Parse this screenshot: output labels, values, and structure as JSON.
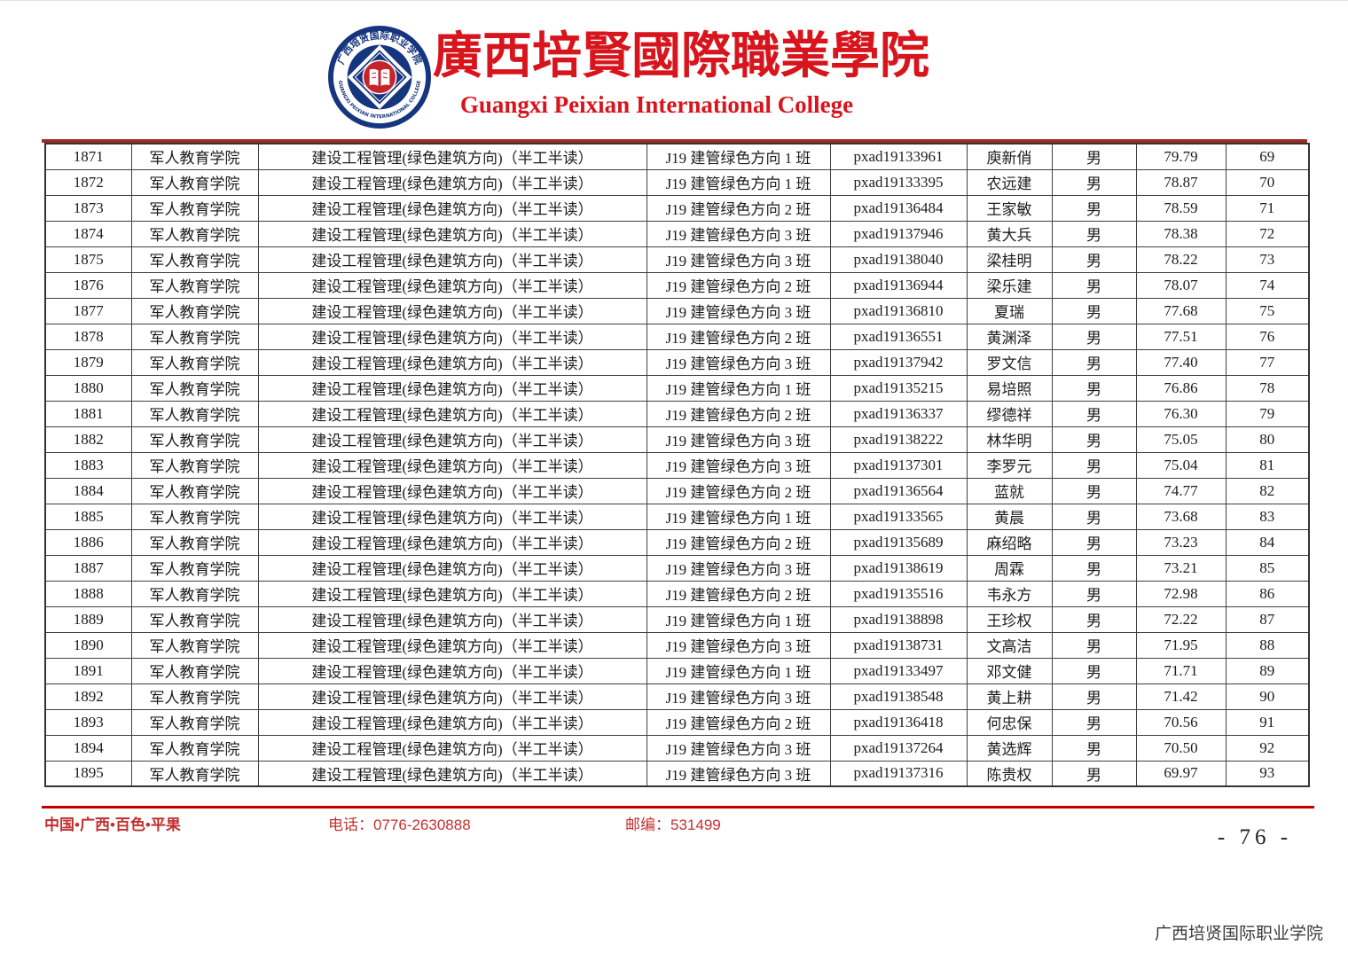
{
  "header": {
    "college_name_zh": "廣西培賢國際職業學院",
    "college_name_en": "Guangxi Peixian International College",
    "logo": {
      "ring_text_top": "广西培贤国际职业学院",
      "ring_text_bottom": "GUANGXI PEIXIAN INTERNATIONAL COLLEGE"
    }
  },
  "colors": {
    "brand_red": "#d8141c",
    "table_top_rule": "#9e2b25",
    "footer_rule": "#c00000",
    "footer_text": "#c22f2f",
    "logo_blue": "#16357f",
    "logo_red": "#c5242b"
  },
  "table": {
    "college": "军人教育学院",
    "major": "建设工程管理(绿色建筑方向)（半工半读）",
    "rows": [
      {
        "no": "1871",
        "class": "J19 建管绿色方向 1 班",
        "id": "pxad19133961",
        "name": "庾新俏",
        "gender": "男",
        "score": "79.79",
        "rank": "69"
      },
      {
        "no": "1872",
        "class": "J19 建管绿色方向 1 班",
        "id": "pxad19133395",
        "name": "农远建",
        "gender": "男",
        "score": "78.87",
        "rank": "70"
      },
      {
        "no": "1873",
        "class": "J19 建管绿色方向 2 班",
        "id": "pxad19136484",
        "name": "王家敏",
        "gender": "男",
        "score": "78.59",
        "rank": "71"
      },
      {
        "no": "1874",
        "class": "J19 建管绿色方向 3 班",
        "id": "pxad19137946",
        "name": "黄大兵",
        "gender": "男",
        "score": "78.38",
        "rank": "72"
      },
      {
        "no": "1875",
        "class": "J19 建管绿色方向 3 班",
        "id": "pxad19138040",
        "name": "梁桂明",
        "gender": "男",
        "score": "78.22",
        "rank": "73"
      },
      {
        "no": "1876",
        "class": "J19 建管绿色方向 2 班",
        "id": "pxad19136944",
        "name": "梁乐建",
        "gender": "男",
        "score": "78.07",
        "rank": "74"
      },
      {
        "no": "1877",
        "class": "J19 建管绿色方向 3 班",
        "id": "pxad19136810",
        "name": "夏瑞",
        "gender": "男",
        "score": "77.68",
        "rank": "75"
      },
      {
        "no": "1878",
        "class": "J19 建管绿色方向 2 班",
        "id": "pxad19136551",
        "name": "黄渊泽",
        "gender": "男",
        "score": "77.51",
        "rank": "76"
      },
      {
        "no": "1879",
        "class": "J19 建管绿色方向 3 班",
        "id": "pxad19137942",
        "name": "罗文信",
        "gender": "男",
        "score": "77.40",
        "rank": "77"
      },
      {
        "no": "1880",
        "class": "J19 建管绿色方向 1 班",
        "id": "pxad19135215",
        "name": "易培照",
        "gender": "男",
        "score": "76.86",
        "rank": "78"
      },
      {
        "no": "1881",
        "class": "J19 建管绿色方向 2 班",
        "id": "pxad19136337",
        "name": "缪德祥",
        "gender": "男",
        "score": "76.30",
        "rank": "79"
      },
      {
        "no": "1882",
        "class": "J19 建管绿色方向 3 班",
        "id": "pxad19138222",
        "name": "林华明",
        "gender": "男",
        "score": "75.05",
        "rank": "80"
      },
      {
        "no": "1883",
        "class": "J19 建管绿色方向 3 班",
        "id": "pxad19137301",
        "name": "李罗元",
        "gender": "男",
        "score": "75.04",
        "rank": "81"
      },
      {
        "no": "1884",
        "class": "J19 建管绿色方向 2 班",
        "id": "pxad19136564",
        "name": "蓝就",
        "gender": "男",
        "score": "74.77",
        "rank": "82"
      },
      {
        "no": "1885",
        "class": "J19 建管绿色方向 1 班",
        "id": "pxad19133565",
        "name": "黄晨",
        "gender": "男",
        "score": "73.68",
        "rank": "83"
      },
      {
        "no": "1886",
        "class": "J19 建管绿色方向 2 班",
        "id": "pxad19135689",
        "name": "麻绍略",
        "gender": "男",
        "score": "73.23",
        "rank": "84"
      },
      {
        "no": "1887",
        "class": "J19 建管绿色方向 3 班",
        "id": "pxad19138619",
        "name": "周霖",
        "gender": "男",
        "score": "73.21",
        "rank": "85"
      },
      {
        "no": "1888",
        "class": "J19 建管绿色方向 2 班",
        "id": "pxad19135516",
        "name": "韦永方",
        "gender": "男",
        "score": "72.98",
        "rank": "86"
      },
      {
        "no": "1889",
        "class": "J19 建管绿色方向 1 班",
        "id": "pxad19138898",
        "name": "王珍权",
        "gender": "男",
        "score": "72.22",
        "rank": "87"
      },
      {
        "no": "1890",
        "class": "J19 建管绿色方向 3 班",
        "id": "pxad19138731",
        "name": "文高洁",
        "gender": "男",
        "score": "71.95",
        "rank": "88"
      },
      {
        "no": "1891",
        "class": "J19 建管绿色方向 1 班",
        "id": "pxad19133497",
        "name": "邓文健",
        "gender": "男",
        "score": "71.71",
        "rank": "89"
      },
      {
        "no": "1892",
        "class": "J19 建管绿色方向 3 班",
        "id": "pxad19138548",
        "name": "黄上耕",
        "gender": "男",
        "score": "71.42",
        "rank": "90"
      },
      {
        "no": "1893",
        "class": "J19 建管绿色方向 2 班",
        "id": "pxad19136418",
        "name": "何忠保",
        "gender": "男",
        "score": "70.56",
        "rank": "91"
      },
      {
        "no": "1894",
        "class": "J19 建管绿色方向 3 班",
        "id": "pxad19137264",
        "name": "黄选辉",
        "gender": "男",
        "score": "70.50",
        "rank": "92"
      },
      {
        "no": "1895",
        "class": "J19 建管绿色方向 3 班",
        "id": "pxad19137316",
        "name": "陈贵权",
        "gender": "男",
        "score": "69.97",
        "rank": "93"
      }
    ]
  },
  "footer": {
    "address": "中国•广西•百色•平果",
    "phone": "电话：0776-2630888",
    "postcode": "邮编：531499"
  },
  "page_number": "- 76 -",
  "watermark": "广西培贤国际职业学院"
}
